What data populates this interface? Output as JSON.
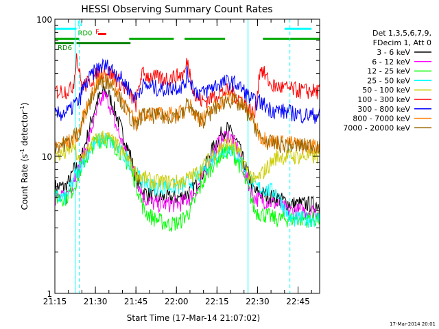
{
  "chart_data": {
    "type": "line",
    "title": "HESSI Observing Summary Count Rates",
    "xlabel": "Start Time (17-Mar-14 21:07:02)",
    "ylabel_main": "Count Rate (s",
    "ylabel_sup": "-1",
    "ylabel_mid": " detector",
    "ylabel_end": ")",
    "yscale": "log",
    "xlim": [
      8,
      106
    ],
    "ylim": [
      1,
      100
    ],
    "x_ticks": [
      {
        "v": 8,
        "label": "21:15"
      },
      {
        "v": 23,
        "label": "21:30"
      },
      {
        "v": 38,
        "label": "21:45"
      },
      {
        "v": 53,
        "label": "22:00"
      },
      {
        "v": 68,
        "label": "22:15"
      },
      {
        "v": 83,
        "label": "22:30"
      },
      {
        "v": 98,
        "label": "22:45"
      }
    ],
    "y_ticks": [
      {
        "v": 1,
        "label": "1"
      },
      {
        "v": 10,
        "label": "10"
      },
      {
        "v": 100,
        "label": "100"
      }
    ],
    "legend": {
      "header": [
        "Det 1,3,5,6,7,9,",
        "FDecim 1, Att 0"
      ],
      "placement": "right",
      "entries": [
        {
          "label": "3 - 6 keV",
          "color": "#000000"
        },
        {
          "label": "6 - 12 keV",
          "color": "#ff00ff"
        },
        {
          "label": "12 - 25 keV",
          "color": "#00ff00"
        },
        {
          "label": "25 - 50 keV",
          "color": "#00ffff"
        },
        {
          "label": "50 - 100 keV",
          "color": "#cccc00"
        },
        {
          "label": "100 - 300 keV",
          "color": "#ff0000"
        },
        {
          "label": "300 - 800 keV",
          "color": "#0000ff"
        },
        {
          "label": "800 - 7000 keV",
          "color": "#ff7f00"
        },
        {
          "label": "7000 - 20000 keV",
          "color": "#996600"
        }
      ]
    },
    "flags": [
      {
        "label": "N",
        "color": "#00ffff",
        "y": 85,
        "segments": [
          [
            -1,
            16
          ],
          [
            93,
            103
          ]
        ]
      },
      {
        "label": "F",
        "color": "#ff0000",
        "y": 78,
        "segments": [
          [
            24,
            27
          ]
        ]
      },
      {
        "label": "RD0",
        "color": "#00aa00",
        "y": 72,
        "segments": [
          [
            -1,
            17
          ],
          [
            35.5,
            52
          ],
          [
            56,
            71
          ],
          [
            85,
            106
          ]
        ]
      },
      {
        "label": "RD6",
        "color": "#008000",
        "y": 67,
        "segments": [
          [
            -1,
            15
          ],
          [
            16,
            36
          ]
        ]
      }
    ],
    "vlines_solid": [
      {
        "x": 15.5,
        "color": "#00ffff"
      },
      {
        "x": 79.5,
        "color": "#00ffff"
      }
    ],
    "vlines_dashed": [
      {
        "x": 17,
        "color": "#00ffff"
      },
      {
        "x": 95,
        "color": "#00ffff"
      }
    ],
    "series": [
      {
        "name": "3 - 6 keV",
        "color": "#000000",
        "x": [
          8,
          12,
          14,
          15,
          17,
          18,
          20,
          22,
          24,
          26,
          28,
          30,
          32,
          34,
          36,
          38,
          41,
          45,
          50,
          54,
          58,
          62,
          65,
          68,
          70,
          72,
          74,
          76,
          78,
          80,
          82,
          90,
          95,
          104,
          106
        ],
        "y": [
          6,
          6,
          7,
          8,
          8.5,
          10,
          14,
          20,
          26,
          30,
          28,
          22,
          17,
          13,
          10,
          7,
          5.5,
          5,
          5,
          5,
          5.5,
          7,
          10,
          13,
          15,
          16,
          14,
          12,
          9,
          7,
          5.5,
          5,
          4.5,
          4.5,
          4.5
        ]
      },
      {
        "name": "6 - 12 keV",
        "color": "#ff00ff",
        "x": [
          8,
          12,
          14,
          15,
          17,
          18,
          20,
          22,
          24,
          26,
          28,
          30,
          32,
          34,
          36,
          38,
          41,
          45,
          50,
          54,
          58,
          62,
          65,
          68,
          70,
          72,
          74,
          76,
          78,
          80,
          82,
          90,
          95,
          104,
          106
        ],
        "y": [
          5,
          5,
          6,
          7,
          8,
          9.5,
          12,
          17,
          22,
          28,
          25,
          18,
          14,
          11,
          9,
          7,
          5,
          4.5,
          4.5,
          4.5,
          5,
          6.5,
          9,
          12,
          13.5,
          14.5,
          13,
          11,
          8,
          6,
          5,
          4.5,
          4,
          4,
          4
        ]
      },
      {
        "name": "12 - 25 keV",
        "color": "#00ff00",
        "x": [
          8,
          12,
          14,
          15,
          17,
          18,
          20,
          22,
          24,
          26,
          28,
          30,
          32,
          34,
          36,
          38,
          41,
          45,
          50,
          54,
          58,
          62,
          65,
          68,
          70,
          72,
          74,
          76,
          78,
          80,
          82,
          90,
          95,
          104,
          106
        ],
        "y": [
          5,
          5,
          5.5,
          6,
          7.5,
          8.5,
          10,
          12,
          13,
          13.5,
          13,
          12,
          11,
          9.5,
          8,
          6.5,
          4,
          3.5,
          3.2,
          3.3,
          4,
          6,
          8,
          9.5,
          10.5,
          11,
          10.5,
          9,
          7,
          5.5,
          4,
          3.5,
          3.5,
          3.5,
          3.5
        ]
      },
      {
        "name": "25 - 50 keV",
        "color": "#00ffff",
        "x": [
          8,
          12,
          14,
          15,
          17,
          18,
          20,
          22,
          24,
          26,
          28,
          30,
          32,
          34,
          36,
          38,
          41,
          45,
          50,
          54,
          58,
          62,
          65,
          68,
          70,
          72,
          74,
          76,
          78,
          80,
          82,
          90,
          95,
          104,
          106
        ],
        "y": [
          5,
          5,
          6,
          7,
          8,
          9,
          10.5,
          12,
          13,
          13.5,
          13,
          12,
          11,
          10,
          9,
          7.5,
          6.5,
          6,
          6,
          6,
          6.5,
          7.5,
          9,
          10.5,
          11,
          11.5,
          11,
          10,
          8.5,
          7,
          6,
          5.5,
          3.5,
          3.5,
          3.5
        ]
      },
      {
        "name": "50 - 100 keV",
        "color": "#cccc00",
        "x": [
          8,
          12,
          14,
          15,
          17,
          18,
          20,
          22,
          24,
          26,
          28,
          30,
          32,
          34,
          36,
          38,
          41,
          45,
          50,
          54,
          58,
          62,
          65,
          68,
          70,
          72,
          74,
          76,
          78,
          80,
          82,
          90,
          95,
          104,
          106
        ],
        "y": [
          10,
          10.5,
          11.5,
          12,
          9,
          10,
          11,
          12.5,
          13.5,
          14,
          13.5,
          12.5,
          11.5,
          10,
          9,
          7.5,
          7,
          6.5,
          6.5,
          6.5,
          7,
          8,
          9.5,
          11,
          12,
          12.5,
          12,
          10.5,
          9,
          7.5,
          6.5,
          10,
          10,
          10,
          10
        ]
      },
      {
        "name": "100 - 300 keV",
        "color": "#ff0000",
        "x": [
          8,
          11,
          14,
          15,
          16,
          18,
          20,
          22,
          24,
          26,
          28,
          30,
          32,
          34,
          36,
          38,
          40,
          44,
          48,
          52,
          56,
          57,
          60,
          63,
          66,
          69,
          72,
          75,
          78,
          80,
          82,
          84,
          88,
          95,
          100,
          106
        ],
        "y": [
          30,
          30,
          31,
          35,
          55,
          32,
          34,
          37,
          40,
          42,
          41,
          38,
          35,
          31,
          28,
          24,
          40,
          38,
          37,
          38,
          40,
          50,
          27,
          25,
          27,
          29,
          30,
          28,
          25,
          22,
          20,
          45,
          33,
          31,
          30,
          30
        ]
      },
      {
        "name": "300 - 800 keV",
        "color": "#0000ff",
        "x": [
          8,
          12,
          14,
          15,
          17,
          18,
          20,
          22,
          24,
          26,
          28,
          30,
          32,
          34,
          36,
          38,
          40,
          44,
          48,
          52,
          56,
          57,
          60,
          63,
          66,
          69,
          72,
          75,
          78,
          80,
          82,
          84,
          88,
          95,
          100,
          106
        ],
        "y": [
          20,
          21,
          22,
          24,
          25,
          30,
          35,
          40,
          44,
          46,
          45,
          42,
          38,
          34,
          30,
          26,
          33,
          32,
          31,
          32,
          33,
          40,
          30,
          29,
          32,
          34,
          35,
          34,
          30,
          27,
          25,
          25,
          22,
          21,
          20,
          20
        ]
      },
      {
        "name": "800 - 7000 keV",
        "color": "#ff7f00",
        "x": [
          8,
          12,
          14,
          15,
          17,
          18,
          20,
          22,
          24,
          26,
          28,
          30,
          32,
          34,
          36,
          38,
          40,
          44,
          48,
          52,
          56,
          57,
          60,
          63,
          66,
          69,
          72,
          75,
          78,
          80,
          82,
          84,
          88,
          95,
          100,
          106
        ],
        "y": [
          12,
          12.5,
          13,
          14,
          15,
          18,
          23,
          30,
          35,
          38,
          37,
          33,
          28,
          24,
          20,
          17,
          21,
          20.5,
          20,
          20.5,
          21,
          26,
          20,
          19,
          22,
          25,
          27,
          26,
          23,
          21,
          18,
          14,
          13,
          12.5,
          12,
          12
        ]
      },
      {
        "name": "7000 - 20000 keV",
        "color": "#996600",
        "x": [
          8,
          12,
          14,
          15,
          17,
          18,
          20,
          22,
          24,
          26,
          28,
          30,
          32,
          34,
          36,
          38,
          40,
          44,
          48,
          52,
          56,
          57,
          60,
          63,
          66,
          69,
          72,
          75,
          78,
          80,
          82,
          84,
          88,
          95,
          100,
          106
        ],
        "y": [
          12,
          12.5,
          13,
          14,
          15,
          18,
          22,
          28,
          33,
          36,
          35,
          32,
          27,
          23,
          19,
          16,
          20,
          20,
          19.5,
          20,
          20.5,
          25,
          19.5,
          18.5,
          21,
          24,
          26,
          25,
          22,
          20,
          17,
          13.5,
          12.5,
          12,
          12,
          12
        ]
      }
    ]
  },
  "footer": {
    "timestamp": "17-Mar-2014 20:01"
  }
}
